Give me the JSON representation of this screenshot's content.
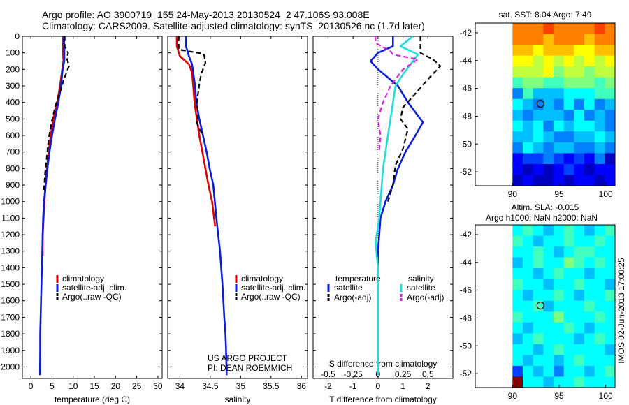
{
  "header": {
    "title_line1": "Argo profile: AO 3900719_155 24-May-2013 20130524_2 47.106S 93.008E",
    "title_line2": "Climatology: CARS2009. Satellite-adjusted climatology: synTS_20130526.nc (1.7d later)"
  },
  "colors": {
    "climatology": "#e00000",
    "satellite": "#0a1ed8",
    "argo": "#000000",
    "sal_satellite": "#22dede",
    "sal_argo": "#e020e0"
  },
  "chart_data": [
    {
      "type": "line",
      "id": "temperature",
      "xlabel": "temperature (deg C)",
      "xlim": [
        -2,
        31
      ],
      "ylim": [
        2070,
        0
      ],
      "xticks": [
        0,
        5,
        10,
        15,
        20,
        25,
        30
      ],
      "yticks": [
        0,
        100,
        200,
        300,
        400,
        500,
        600,
        700,
        800,
        900,
        1000,
        1100,
        1200,
        1300,
        1400,
        1500,
        1600,
        1700,
        1800,
        1900,
        2000
      ],
      "legend": [
        "climatology",
        "satellite-adj. clim.",
        "Argo(..raw -QC)"
      ],
      "series": [
        {
          "name": "climatology",
          "style": "solid",
          "color": "#e00000",
          "x": [
            7.6,
            7.6,
            7.7,
            7.4,
            6.9,
            6.2,
            5.3,
            4.7,
            4.2,
            3.8,
            3.5,
            3.2,
            3.0,
            2.8,
            2.8
          ],
          "y": [
            0,
            100,
            150,
            200,
            300,
            400,
            500,
            600,
            700,
            800,
            900,
            1000,
            1100,
            1200,
            1330
          ]
        },
        {
          "name": "satellite-adj. clim.",
          "style": "solid",
          "color": "#0a1ed8",
          "x": [
            7.8,
            7.9,
            7.9,
            7.5,
            7.1,
            6.5,
            5.7,
            5.0,
            4.4,
            3.9,
            3.5,
            3.1,
            2.9,
            2.8,
            2.6,
            2.5,
            2.4,
            2.3,
            2.2,
            2.2,
            2.15
          ],
          "y": [
            0,
            100,
            150,
            200,
            300,
            400,
            500,
            600,
            700,
            800,
            900,
            1000,
            1100,
            1200,
            1400,
            1500,
            1600,
            1700,
            1800,
            1900,
            2050
          ]
        },
        {
          "name": "Argo(..raw -QC)",
          "style": "dashed",
          "color": "#000000",
          "x": [
            8.0,
            8.0,
            8.8,
            8.5,
            9.0,
            7.8,
            7.0,
            5.8,
            4.9,
            4.2,
            3.8,
            3.4,
            3.1
          ],
          "y": [
            0,
            60,
            100,
            130,
            180,
            260,
            330,
            420,
            520,
            620,
            720,
            820,
            930
          ]
        }
      ]
    },
    {
      "type": "line",
      "id": "salinity",
      "xlabel": "salinity",
      "xlim": [
        33.8,
        36.1
      ],
      "ylim": [
        2070,
        0
      ],
      "xticks": [
        34,
        34.5,
        35,
        35.5,
        36
      ],
      "yticks": [
        0,
        100,
        200,
        300,
        400,
        500,
        600,
        700,
        800,
        900,
        1000,
        1100,
        1200,
        1300,
        1400,
        1500,
        1600,
        1700,
        1800,
        1900,
        2000
      ],
      "legend": [
        "climatology",
        "satellite-adj. clim.",
        "Argo(..raw -QC)"
      ],
      "series": [
        {
          "name": "climatology",
          "style": "solid",
          "color": "#e00000",
          "x": [
            33.95,
            33.95,
            34.0,
            34.15,
            34.2,
            34.22,
            34.24,
            34.28,
            34.32,
            34.37,
            34.42,
            34.47,
            34.53,
            34.58
          ],
          "y": [
            0,
            60,
            120,
            170,
            220,
            300,
            400,
            500,
            600,
            700,
            800,
            900,
            1000,
            1150
          ]
        },
        {
          "name": "satellite-adj. clim.",
          "style": "solid",
          "color": "#0a1ed8",
          "x": [
            34.1,
            34.1,
            34.15,
            34.2,
            34.22,
            34.25,
            34.27,
            34.32,
            34.38,
            34.44,
            34.49,
            34.55,
            34.6,
            34.66,
            34.7,
            34.73,
            34.75,
            34.76,
            34.77
          ],
          "y": [
            0,
            60,
            120,
            170,
            220,
            300,
            400,
            500,
            600,
            700,
            800,
            900,
            1100,
            1300,
            1500,
            1700,
            1800,
            1900,
            2050
          ]
        },
        {
          "name": "Argo(..raw -QC)",
          "style": "dashed",
          "color": "#000000",
          "x": [
            33.98,
            33.98,
            34.38,
            34.4,
            34.42,
            34.35,
            34.32,
            34.28,
            34.3,
            34.28,
            34.32,
            34.38
          ],
          "y": [
            0,
            80,
            105,
            115,
            160,
            230,
            290,
            400,
            470,
            520,
            560,
            600
          ]
        }
      ]
    },
    {
      "type": "line",
      "id": "difference",
      "xlabel": "T difference from climatology",
      "xlabel_top": "S difference from climatology",
      "xlim": [
        -2.6,
        3
      ],
      "ylim": [
        2070,
        0
      ],
      "xticks": [
        -2,
        -1,
        0,
        1,
        2
      ],
      "xticks_top": [
        -0.5,
        -0.25,
        0,
        0.25,
        0.5
      ],
      "yticks": [
        0,
        100,
        200,
        300,
        400,
        500,
        600,
        700,
        800,
        900,
        1000,
        1100,
        1200,
        1300,
        1400,
        1500,
        1600,
        1700,
        1800,
        1900,
        2000
      ],
      "legend_headers": [
        "temperature",
        "salinity"
      ],
      "legend": [
        "satellite",
        "Argo(-adj)",
        "satellite",
        "Argo(-adj)"
      ],
      "series": [
        {
          "name": "satellite",
          "group": "temperature",
          "style": "solid",
          "color": "#0a1ed8",
          "x": [
            0.6,
            0.6,
            0.0,
            -0.3,
            0.0,
            0.8,
            1.2,
            1.6,
            1.8,
            1.5,
            1.1,
            0.8,
            0.6,
            0.3,
            0.1,
            0.0,
            0.0
          ],
          "y": [
            0,
            60,
            100,
            150,
            200,
            300,
            400,
            480,
            520,
            600,
            700,
            800,
            900,
            1000,
            1100,
            1300,
            2050
          ]
        },
        {
          "name": "Argo(-adj)",
          "group": "temperature",
          "style": "dashed",
          "color": "#000000",
          "x": [
            1.7,
            1.7,
            2.2,
            2.5,
            2.0,
            1.3,
            1.0,
            0.9,
            1.2,
            1.0,
            0.7,
            0.6,
            0.4
          ],
          "y": [
            0,
            100,
            140,
            180,
            260,
            380,
            430,
            500,
            560,
            680,
            780,
            900,
            1000
          ]
        },
        {
          "name": "satellite",
          "group": "salinity",
          "style": "solid",
          "color": "#22dede",
          "x": [
            1.4,
            0.9,
            1.6,
            1.0,
            0.7,
            0.6,
            0.5,
            0.4,
            0.3,
            0.2,
            0.05,
            -0.1,
            0.0,
            0.0
          ],
          "y": [
            0,
            60,
            110,
            230,
            300,
            400,
            500,
            600,
            700,
            800,
            1100,
            1250,
            1400,
            2050
          ]
        },
        {
          "name": "Argo(-adj)",
          "group": "salinity",
          "style": "dashed",
          "color": "#e020e0",
          "x": [
            -0.1,
            -0.1,
            0.5,
            0.6,
            1.6,
            1.0,
            0.5,
            0.2,
            0.0,
            0.1,
            0.05
          ],
          "y": [
            0,
            40,
            90,
            110,
            140,
            200,
            300,
            400,
            500,
            600,
            700
          ]
        }
      ]
    },
    {
      "type": "heatmap",
      "id": "sst_map",
      "title": "sat. SST: 8.04  Argo: 7.49",
      "xlim": [
        86,
        101
      ],
      "ylim": [
        -53,
        -41.3
      ],
      "xticks": [
        90,
        95,
        100
      ],
      "yticks": [
        -42,
        -44,
        -46,
        -48,
        -50,
        -52
      ],
      "colormap": "jet",
      "marker": {
        "lon": 93.0,
        "lat": -47.1
      },
      "rows_top_to_bottom": [
        "MMMNMMMMNM",
        "MMMLMMMLMM",
        "LLKLLLKKLL",
        "KKJKJKJKJK",
        "JJJKIJJIJJ",
        "HIIHHIIIHI",
        "EHFFFGGGHH",
        "GFEFEGEGEF",
        "FEFFFEGEFE",
        "GFGEGFGGFE",
        "FFGFEEFFGF",
        "EGFEFFEEFE",
        "CDDEDCDCEB",
        "CBCBCDCBCC",
        "BCBBCBCCBC"
      ]
    },
    {
      "type": "heatmap",
      "id": "sla_map",
      "title": "Altim. SLA: -0.015",
      "subtitle": "Argo h1000: NaN h2000: NaN",
      "side_label": "IMOS 02-Jun-2013 17:00:25",
      "xlim": [
        86,
        101
      ],
      "ylim": [
        -53,
        -41.3
      ],
      "xticks": [
        90,
        95,
        100
      ],
      "yticks": [
        -42,
        -44,
        -46,
        -48,
        -50,
        -52
      ],
      "colormap": "jet",
      "marker": {
        "lon": 93.0,
        "lat": -47.1
      },
      "rows_top_to_bottom": [
        "GHGFGHGFGH",
        "HGFGGHGGHG",
        "GGHGFGHHGG",
        "FGHGGIHGHG",
        "GGFGHGGFGG",
        "HGGFGGHGGF",
        "GFGGHGFGGH",
        "GGHFGGGHGG",
        "HGGGIGGGHG",
        "GFGGGHGFGG",
        "FGHGGGFGHG",
        "GGFGHGGGGF",
        "GFGGFGHGGG",
        "DGFGEGGFGH",
        "RGGFGGHGGG"
      ]
    }
  ],
  "annotations": {
    "project_line1": "US ARGO PROJECT",
    "project_line2": "PI: DEAN ROEMMICH"
  }
}
